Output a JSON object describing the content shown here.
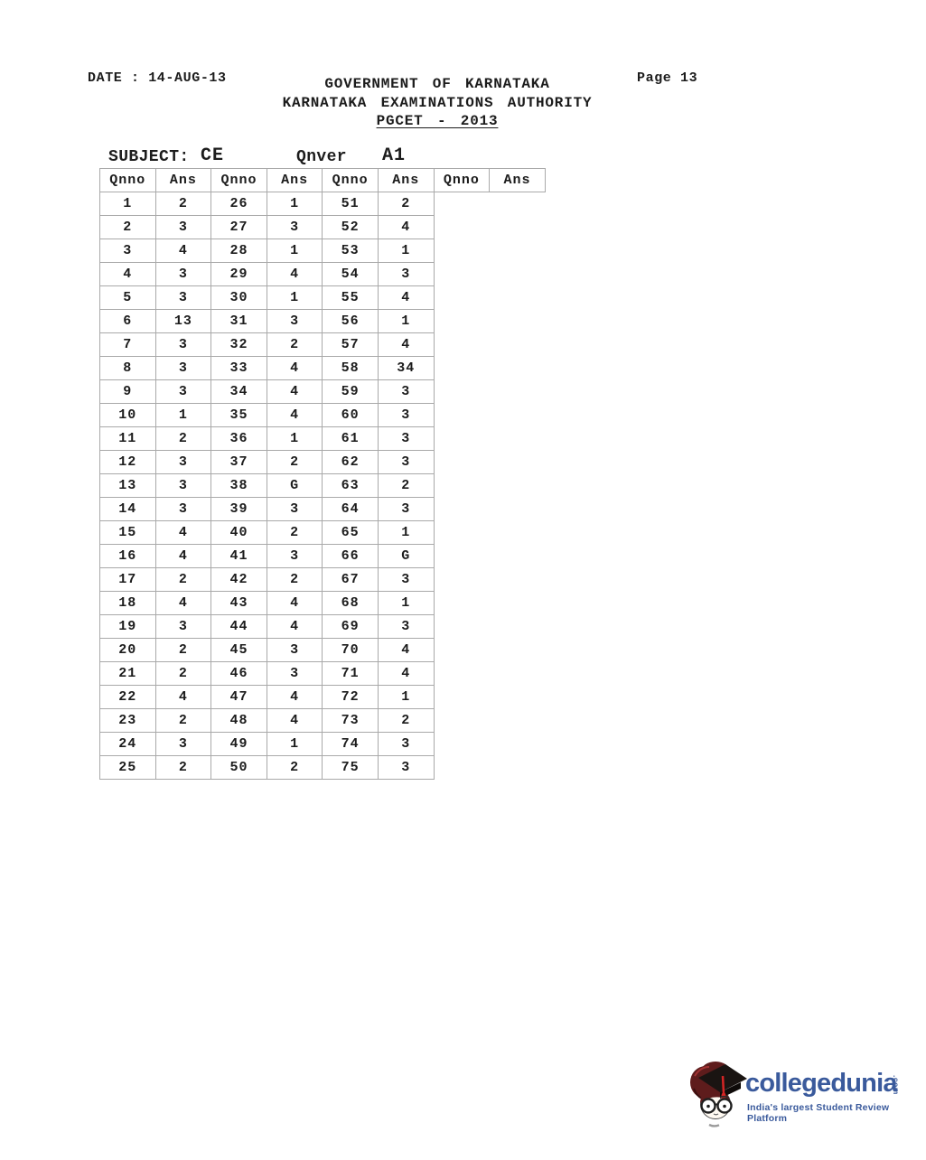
{
  "page": {
    "date_label": "DATE : 14-AUG-13",
    "page_label": "Page 13",
    "title_line1": "GOVERNMENT OF KARNATAKA",
    "title_line2": "KARNATAKA EXAMINATIONS AUTHORITY",
    "title_line3": "PGCET - 2013"
  },
  "subject": {
    "label": "SUBJECT:",
    "value": "CE",
    "qnver_label": "Qnver",
    "qnver_value": "A1"
  },
  "answer_table": {
    "column_headers": [
      "Qnno",
      "Ans",
      "Qnno",
      "Ans",
      "Qnno",
      "Ans",
      "Qnno",
      "Ans"
    ],
    "rows": [
      {
        "q1": "1",
        "a1": "2",
        "q2": "26",
        "a2": "1",
        "q3": "51",
        "a3": "2"
      },
      {
        "q1": "2",
        "a1": "3",
        "q2": "27",
        "a2": "3",
        "q3": "52",
        "a3": "4"
      },
      {
        "q1": "3",
        "a1": "4",
        "q2": "28",
        "a2": "1",
        "q3": "53",
        "a3": "1"
      },
      {
        "q1": "4",
        "a1": "3",
        "q2": "29",
        "a2": "4",
        "q3": "54",
        "a3": "3"
      },
      {
        "q1": "5",
        "a1": "3",
        "q2": "30",
        "a2": "1",
        "q3": "55",
        "a3": "4"
      },
      {
        "q1": "6",
        "a1": "13",
        "q2": "31",
        "a2": "3",
        "q3": "56",
        "a3": "1"
      },
      {
        "q1": "7",
        "a1": "3",
        "q2": "32",
        "a2": "2",
        "q3": "57",
        "a3": "4"
      },
      {
        "q1": "8",
        "a1": "3",
        "q2": "33",
        "a2": "4",
        "q3": "58",
        "a3": "34"
      },
      {
        "q1": "9",
        "a1": "3",
        "q2": "34",
        "a2": "4",
        "q3": "59",
        "a3": "3"
      },
      {
        "q1": "10",
        "a1": "1",
        "q2": "35",
        "a2": "4",
        "q3": "60",
        "a3": "3"
      },
      {
        "q1": "11",
        "a1": "2",
        "q2": "36",
        "a2": "1",
        "q3": "61",
        "a3": "3"
      },
      {
        "q1": "12",
        "a1": "3",
        "q2": "37",
        "a2": "2",
        "q3": "62",
        "a3": "3"
      },
      {
        "q1": "13",
        "a1": "3",
        "q2": "38",
        "a2": "G",
        "q3": "63",
        "a3": "2"
      },
      {
        "q1": "14",
        "a1": "3",
        "q2": "39",
        "a2": "3",
        "q3": "64",
        "a3": "3"
      },
      {
        "q1": "15",
        "a1": "4",
        "q2": "40",
        "a2": "2",
        "q3": "65",
        "a3": "1"
      },
      {
        "q1": "16",
        "a1": "4",
        "q2": "41",
        "a2": "3",
        "q3": "66",
        "a3": "G"
      },
      {
        "q1": "17",
        "a1": "2",
        "q2": "42",
        "a2": "2",
        "q3": "67",
        "a3": "3"
      },
      {
        "q1": "18",
        "a1": "4",
        "q2": "43",
        "a2": "4",
        "q3": "68",
        "a3": "1"
      },
      {
        "q1": "19",
        "a1": "3",
        "q2": "44",
        "a2": "4",
        "q3": "69",
        "a3": "3"
      },
      {
        "q1": "20",
        "a1": "2",
        "q2": "45",
        "a2": "3",
        "q3": "70",
        "a3": "4"
      },
      {
        "q1": "21",
        "a1": "2",
        "q2": "46",
        "a2": "3",
        "q3": "71",
        "a3": "4"
      },
      {
        "q1": "22",
        "a1": "4",
        "q2": "47",
        "a2": "4",
        "q3": "72",
        "a3": "1"
      },
      {
        "q1": "23",
        "a1": "2",
        "q2": "48",
        "a2": "4",
        "q3": "73",
        "a3": "2"
      },
      {
        "q1": "24",
        "a1": "3",
        "q2": "49",
        "a2": "1",
        "q3": "74",
        "a3": "3"
      },
      {
        "q1": "25",
        "a1": "2",
        "q2": "50",
        "a2": "2",
        "q3": "75",
        "a3": "3"
      }
    ]
  },
  "footer_logo": {
    "brand": "collegedunia",
    "brand_suffix": ".com",
    "tagline": "India's largest Student Review Platform",
    "brand_color": "#3a5a9c",
    "mascot_icon": "graduate-boy-mascot-icon"
  }
}
